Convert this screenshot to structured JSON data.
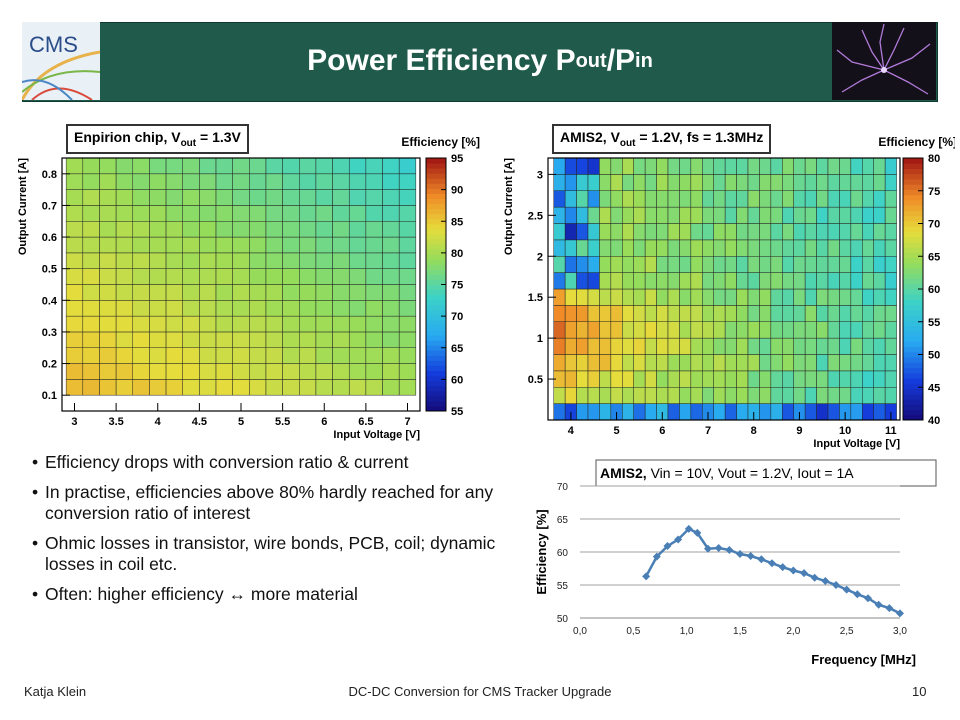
{
  "header": {
    "title_main": "Power Efficiency P",
    "title_sub1": "out",
    "title_slash": "/P",
    "title_sub2": "in",
    "logo_text": "CMS"
  },
  "colors": {
    "header_bg": "#1f5a4a",
    "line_series": "#4a7fb5"
  },
  "bullets": [
    "Efficiency drops with conversion ratio & current",
    "In practise, efficiencies above 80% hardly reached for any conversion ratio of interest",
    "Ohmic losses in transistor, wire bonds, PCB, coil; dynamic losses in coil etc.",
    "Often: higher efficiency ↔ more material"
  ],
  "footer": {
    "author": "Katja Klein",
    "talk": "DC-DC Conversion for CMS Tracker Upgrade",
    "page": "10"
  },
  "chart_data": [
    {
      "type": "heatmap",
      "label_main": "Enpirion chip, V",
      "label_sub": "out",
      "label_rest": " = 1.3V",
      "xlabel": "Input Voltage [V]",
      "ylabel": "Output Current [A]",
      "zlabel": "Efficiency [%]",
      "xlim": [
        2.85,
        7.15
      ],
      "ylim": [
        0.05,
        0.85
      ],
      "x_ticks": [
        3,
        3.5,
        4,
        4.5,
        5,
        5.5,
        6,
        6.5,
        7
      ],
      "x_tick_labels": [
        "3",
        "3.5",
        "4",
        "4.5",
        "5",
        "5.5",
        "6",
        "6.5",
        "7"
      ],
      "y_ticks": [
        0.1,
        0.2,
        0.3,
        0.4,
        0.5,
        0.6,
        0.7,
        0.8
      ],
      "y_tick_labels": [
        "0.1",
        "0.2",
        "0.3",
        "0.4",
        "0.5",
        "0.6",
        "0.7",
        "0.8"
      ],
      "zlim": [
        55,
        95
      ],
      "z_ticks": [
        55,
        60,
        65,
        70,
        75,
        80,
        85,
        90,
        95
      ],
      "cell_dx": 0.2,
      "cell_dy": 0.05,
      "x_start": 3.0,
      "y_start": 0.1,
      "n_x": 21,
      "n_y": 15,
      "trend_summary": "values about 85% at low input voltage and low current, decreasing to about 75% toward high input voltage and high current"
    },
    {
      "type": "heatmap",
      "label_main": "AMIS2, V",
      "label_sub": "out",
      "label_rest": " = 1.2V, fs = 1.3MHz",
      "xlabel": "Input Voltage [V]",
      "ylabel": "Output Current [A]",
      "zlabel": "Efficiency [%]",
      "xlim": [
        3.5,
        11.2
      ],
      "ylim": [
        0.0,
        3.2
      ],
      "x_ticks": [
        4,
        5,
        6,
        7,
        8,
        9,
        10,
        11
      ],
      "x_tick_labels": [
        "4",
        "5",
        "6",
        "7",
        "8",
        "9",
        "10",
        "11"
      ],
      "y_ticks": [
        0.5,
        1,
        1.5,
        2,
        2.5,
        3
      ],
      "y_tick_labels": [
        "0.5",
        "1",
        "1.5",
        "2",
        "2.5",
        "3"
      ],
      "zlim": [
        40,
        80
      ],
      "z_ticks": [
        40,
        45,
        50,
        55,
        60,
        65,
        70,
        75,
        80
      ],
      "cell_dx": 0.25,
      "cell_dy": 0.2,
      "x_start": 3.75,
      "y_start": 0.0,
      "n_x": 30,
      "n_y": 16,
      "trend_summary": "values up to about 78% at low input voltage and 0.5-1.5 A, about 60-65% across most of the range, lower near the low-current bottom row and along the lowest input voltages at high current"
    },
    {
      "type": "line",
      "title": "AMIS2, Vin = 10V, Vout = 1.2V, Iout = 1A",
      "title_bold_part": "AMIS2,",
      "title_rest": " Vin = 10V, Vout = 1.2V, Iout = 1A",
      "xlabel": "Frequency [MHz]",
      "ylabel": "Efficiency [%]",
      "xlim": [
        0.0,
        3.0
      ],
      "ylim": [
        50,
        70
      ],
      "x_ticks": [
        0.0,
        0.5,
        1.0,
        1.5,
        2.0,
        2.5,
        3.0
      ],
      "x_tick_labels": [
        "0,0",
        "0,5",
        "1,0",
        "1,5",
        "2,0",
        "2,5",
        "3,0"
      ],
      "y_ticks": [
        50,
        55,
        60,
        65,
        70
      ],
      "y_tick_labels": [
        "50",
        "55",
        "60",
        "65",
        "70"
      ],
      "grid": true,
      "series": [
        {
          "x": [
            0.62,
            0.72,
            0.82,
            0.92,
            1.02,
            1.1,
            1.2,
            1.3,
            1.4,
            1.5,
            1.6,
            1.7,
            1.8,
            1.9,
            2.0,
            2.1,
            2.2,
            2.3,
            2.4,
            2.5,
            2.6,
            2.7,
            2.8,
            2.9,
            3.0
          ],
          "y": [
            56.3,
            59.3,
            60.9,
            61.9,
            63.5,
            62.9,
            60.5,
            60.6,
            60.3,
            59.7,
            59.4,
            58.9,
            58.3,
            57.7,
            57.2,
            56.8,
            56.1,
            55.6,
            55.0,
            54.3,
            53.6,
            53.0,
            52.0,
            51.5,
            50.7
          ]
        }
      ]
    }
  ]
}
